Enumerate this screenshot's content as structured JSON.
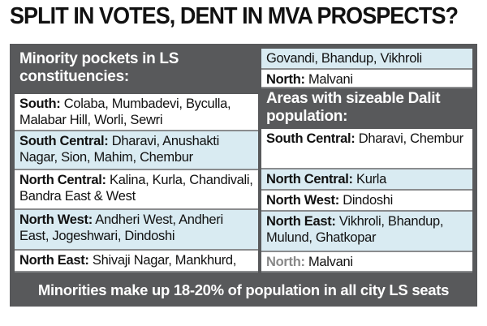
{
  "title": "SPLIT IN VOTES, DENT IN MVA PROSPECTS?",
  "left": {
    "heading": "Minority pockets in LS constituencies:",
    "rows": [
      {
        "label": "South:",
        "text": "Colaba, Mumbadevi, Byculla, Malabar Hill, Worli, Sewri"
      },
      {
        "label": "South Central:",
        "text": "Dharavi, Anushakti Nagar, Sion, Mahim, Chembur"
      },
      {
        "label": "North Central:",
        "text": "Kalina, Kurla, Chandivali, Bandra East & West"
      },
      {
        "label": "North West:",
        "text": "Andheri West, Andheri East, Jogeshwari, Dindoshi"
      },
      {
        "label": "North East:",
        "text": "Shivaji Nagar, Mankhurd,"
      }
    ]
  },
  "right": {
    "continued": [
      {
        "text": "Govandi, Bhandup, Vikhroli"
      },
      {
        "label": "North:",
        "text": "Malvani"
      }
    ],
    "heading": "Areas with sizeable Dalit population:",
    "rows": [
      {
        "label": "South Central:",
        "text": "Dharavi, Chembur"
      },
      {
        "label": "North Central:",
        "text": "Kurla"
      },
      {
        "label": "North West:",
        "text": "Dindoshi"
      },
      {
        "label": "North East:",
        "text": "Vikhroli, Bhandup, Mulund, Ghatkopar"
      },
      {
        "label": "North:",
        "text": "Malvani"
      }
    ]
  },
  "footer": "Minorities make up 18-20% of population in all city LS seats"
}
